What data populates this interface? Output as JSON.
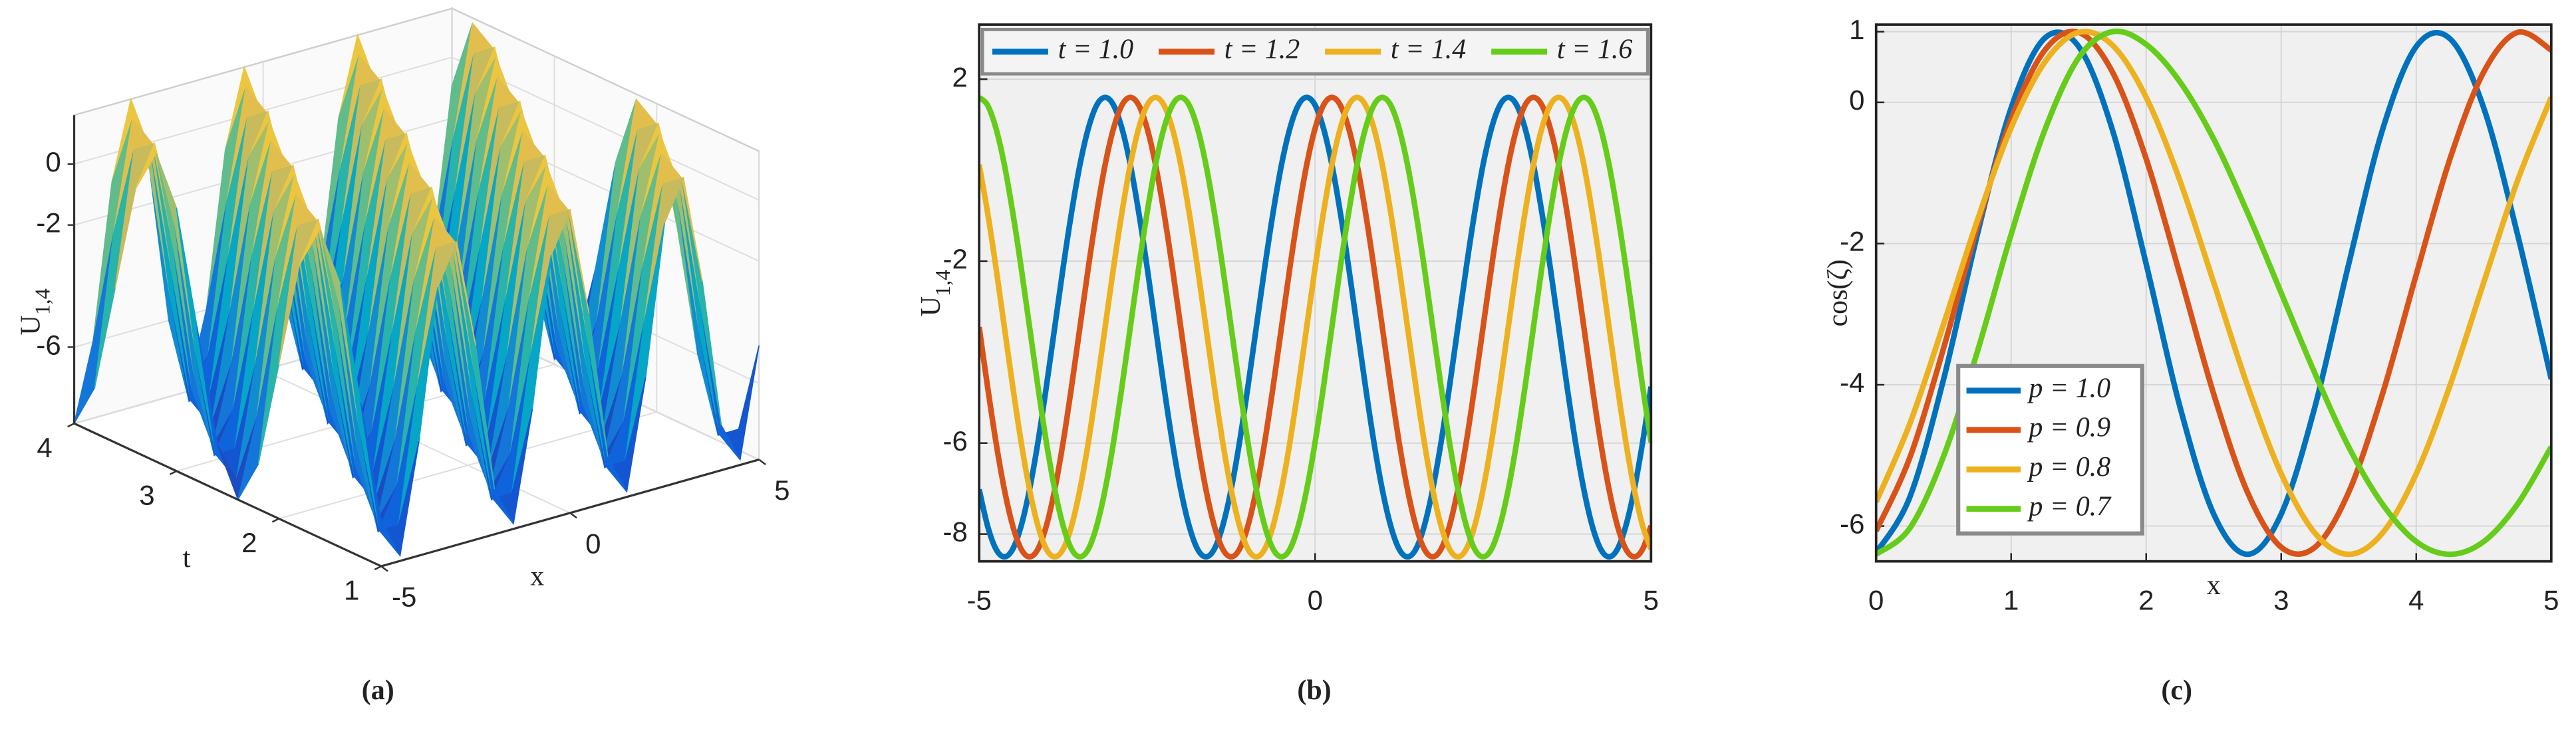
{
  "chart_data": [
    {
      "type": "surface",
      "caption": "(a)",
      "xlabel": "x",
      "tlabel": "t",
      "zlabel": "U",
      "zlabel_sub": "1,4",
      "x": [
        -5,
        -4.5,
        -4,
        -3.5,
        -3,
        -2.5,
        -2,
        -1.5,
        -1,
        -0.5,
        0,
        0.5,
        1,
        1.5,
        2,
        2.5,
        3,
        3.5,
        4,
        4.5,
        5
      ],
      "t": [
        1,
        1.2,
        1.4,
        1.6,
        1.8,
        2,
        2.2,
        2.4,
        2.6,
        2.8,
        3,
        3.2,
        3.4,
        3.6,
        3.8,
        4
      ],
      "z": [
        [
          -7.02,
          -8.33,
          -4.76,
          0.12,
          1.43,
          -2.14,
          -7.02,
          -8.33,
          -4.76,
          0.12,
          1.43,
          -2.14,
          -7.02,
          -8.33,
          -4.76,
          0.12,
          1.43,
          -2.14,
          -7.02,
          -8.33,
          -4.76
        ],
        [
          -3.45,
          -7.82,
          -7.82,
          -3.45,
          0.92,
          0.92,
          -3.45,
          -7.82,
          -7.82,
          -3.45,
          0.92,
          0.92,
          -3.45,
          -7.82,
          -7.82,
          -3.45,
          0.92,
          0.92,
          -3.45,
          -7.82,
          -7.82
        ],
        [
          0.12,
          -4.76,
          -8.33,
          -7.02,
          -2.14,
          1.43,
          0.12,
          -4.76,
          -8.33,
          -7.02,
          -2.14,
          1.43,
          0.12,
          -4.76,
          -8.33,
          -7.02,
          -2.14,
          1.43,
          0.12,
          -4.76,
          -8.33
        ],
        [
          1.6,
          -0.93,
          -5.98,
          -8.5,
          -5.98,
          -0.93,
          1.6,
          -0.93,
          -5.98,
          -8.5,
          -5.98,
          -0.93,
          1.6,
          -0.93,
          -5.98,
          -8.5,
          -5.98,
          -0.93,
          1.6,
          -0.93,
          -5.98
        ],
        [
          0.12,
          1.43,
          -2.14,
          -7.02,
          -8.33,
          -4.76,
          0.12,
          1.43,
          -2.14,
          -7.02,
          -8.33,
          -4.76,
          0.12,
          1.43,
          -2.14,
          -7.02,
          -8.33,
          -4.76,
          0.12,
          1.43,
          -2.14
        ],
        [
          -3.45,
          0.92,
          0.92,
          -3.45,
          -7.82,
          -7.82,
          -3.45,
          0.92,
          0.92,
          -3.45,
          -7.82,
          -7.82,
          -3.45,
          0.92,
          0.92,
          -3.45,
          -7.82,
          -7.82,
          -3.45,
          0.92,
          0.92
        ],
        [
          -7.02,
          -2.14,
          1.43,
          0.12,
          -4.76,
          -8.33,
          -7.02,
          -2.14,
          1.43,
          0.12,
          -4.76,
          -8.33,
          -7.02,
          -2.14,
          1.43,
          0.12,
          -4.76,
          -8.33,
          -7.02,
          -2.14,
          1.43
        ],
        [
          -8.5,
          -5.98,
          -0.93,
          1.6,
          -0.93,
          -5.98,
          -8.5,
          -5.98,
          -0.93,
          1.6,
          -0.93,
          -5.98,
          -8.5,
          -5.98,
          -0.93,
          1.6,
          -0.93,
          -5.98,
          -8.5,
          -5.98,
          -0.93
        ],
        [
          -7.02,
          -8.33,
          -4.76,
          0.12,
          1.43,
          -2.14,
          -7.02,
          -8.33,
          -4.76,
          0.12,
          1.43,
          -2.14,
          -7.02,
          -8.33,
          -4.76,
          0.12,
          1.43,
          -2.14,
          -7.02,
          -8.33,
          -4.76
        ],
        [
          -3.45,
          -7.82,
          -7.82,
          -3.45,
          0.92,
          0.92,
          -3.45,
          -7.82,
          -7.82,
          -3.45,
          0.92,
          0.92,
          -3.45,
          -7.82,
          -7.82,
          -3.45,
          0.92,
          0.92,
          -3.45,
          -7.82,
          -7.82
        ],
        [
          0.12,
          -4.76,
          -8.33,
          -7.02,
          -2.14,
          1.43,
          0.12,
          -4.76,
          -8.33,
          -7.02,
          -2.14,
          1.43,
          0.12,
          -4.76,
          -8.33,
          -7.02,
          -2.14,
          1.43,
          0.12,
          -4.76,
          -8.33
        ],
        [
          1.6,
          -0.93,
          -5.98,
          -8.5,
          -5.98,
          -0.93,
          1.6,
          -0.93,
          -5.98,
          -8.5,
          -5.98,
          -0.93,
          1.6,
          -0.93,
          -5.98,
          -8.5,
          -5.98,
          -0.93,
          1.6,
          -0.93,
          -5.98
        ],
        [
          0.12,
          1.43,
          -2.14,
          -7.02,
          -8.33,
          -4.76,
          0.12,
          1.43,
          -2.14,
          -7.02,
          -8.33,
          -4.76,
          0.12,
          1.43,
          -2.14,
          -7.02,
          -8.33,
          -4.76,
          0.12,
          1.43,
          -2.14
        ],
        [
          -3.45,
          0.92,
          0.92,
          -3.45,
          -7.82,
          -7.82,
          -3.45,
          0.92,
          0.92,
          -3.45,
          -7.82,
          -7.82,
          -3.45,
          0.92,
          0.92,
          -3.45,
          -7.82,
          -7.82,
          -3.45,
          0.92,
          0.92
        ],
        [
          -7.02,
          -2.14,
          1.43,
          0.12,
          -4.76,
          -8.33,
          -7.02,
          -2.14,
          1.43,
          0.12,
          -4.76,
          -8.33,
          -7.02,
          -2.14,
          1.43,
          0.12,
          -4.76,
          -8.33,
          -7.02,
          -2.14,
          1.43
        ],
        [
          -8.5,
          -5.98,
          -0.93,
          1.6,
          -0.93,
          -5.98,
          -8.5,
          -5.98,
          -0.93,
          1.6,
          -0.93,
          -5.98,
          -8.5,
          -5.98,
          -0.93,
          1.6,
          -0.93,
          -5.98,
          -8.5,
          -5.98,
          -0.93
        ]
      ],
      "xlim": [
        -5,
        5
      ],
      "tlim": [
        1,
        4
      ],
      "zlim": [
        -8.5,
        1.6
      ],
      "xticks": [
        -5,
        0,
        5
      ],
      "tticks": [
        1,
        2,
        3,
        4
      ],
      "zticks": [
        0,
        -2,
        -6
      ],
      "colormap": "parula",
      "grid": true
    },
    {
      "type": "line",
      "caption": "(b)",
      "ylabel": "U",
      "ylabel_sub": "1,4",
      "x": [
        -5,
        -4.875,
        -4.75,
        -4.625,
        -4.5,
        -4.375,
        -4.25,
        -4.125,
        -4,
        -3.875,
        -3.75,
        -3.625,
        -3.5,
        -3.375,
        -3.25,
        -3.125,
        -3,
        -2.875,
        -2.75,
        -2.625,
        -2.5,
        -2.375,
        -2.25,
        -2.125,
        -2,
        -1.875,
        -1.75,
        -1.625,
        -1.5,
        -1.375,
        -1.25,
        -1.125,
        -1,
        -0.875,
        -0.75,
        -0.625,
        -0.5,
        -0.375,
        -0.25,
        -0.125,
        0,
        0.125,
        0.25,
        0.375,
        0.5,
        0.625,
        0.75,
        0.875,
        1,
        1.125,
        1.25,
        1.375,
        1.5,
        1.625,
        1.75,
        1.875,
        2,
        2.125,
        2.25,
        2.375,
        2.5,
        2.625,
        2.75,
        2.875,
        3,
        3.125,
        3.25,
        3.375,
        3.5,
        3.625,
        3.75,
        3.875,
        4,
        4.125,
        4.25,
        4.375,
        4.5,
        4.625,
        4.75,
        4.875,
        5
      ],
      "series": [
        {
          "name": "t = 1.0",
          "color": "#0072bd",
          "values": [
            -7.02,
            -7.82,
            -8.33,
            -8.5,
            -8.33,
            -7.82,
            -7.02,
            -5.98,
            -4.76,
            -3.45,
            -2.14,
            -0.93,
            0.12,
            0.92,
            1.43,
            1.6,
            1.43,
            0.92,
            0.12,
            -0.93,
            -2.14,
            -3.45,
            -4.76,
            -5.98,
            -7.02,
            -7.82,
            -8.33,
            -8.5,
            -8.33,
            -7.82,
            -7.02,
            -5.98,
            -4.76,
            -3.45,
            -2.14,
            -0.93,
            0.12,
            0.92,
            1.43,
            1.6,
            1.43,
            0.92,
            0.12,
            -0.93,
            -2.14,
            -3.45,
            -4.76,
            -5.98,
            -7.02,
            -7.82,
            -8.33,
            -8.5,
            -8.33,
            -7.82,
            -7.02,
            -5.98,
            -4.76,
            -3.45,
            -2.14,
            -0.93,
            0.12,
            0.92,
            1.43,
            1.6,
            1.43,
            0.92,
            0.12,
            -0.93,
            -2.14,
            -3.45,
            -4.76,
            -5.98,
            -7.02,
            -7.82,
            -8.33,
            -8.5,
            -8.33,
            -7.82,
            -7.02,
            -5.98,
            -4.76
          ]
        },
        {
          "name": "t = 1.2",
          "color": "#d95319",
          "values": [
            -3.45,
            -4.76,
            -5.98,
            -7.02,
            -7.82,
            -8.33,
            -8.5,
            -8.33,
            -7.82,
            -7.02,
            -5.98,
            -4.76,
            -3.45,
            -2.14,
            -0.93,
            0.12,
            0.92,
            1.43,
            1.6,
            1.43,
            0.92,
            0.12,
            -0.93,
            -2.14,
            -3.45,
            -4.76,
            -5.98,
            -7.02,
            -7.82,
            -8.33,
            -8.5,
            -8.33,
            -7.82,
            -7.02,
            -5.98,
            -4.76,
            -3.45,
            -2.14,
            -0.93,
            0.12,
            0.92,
            1.43,
            1.6,
            1.43,
            0.92,
            0.12,
            -0.93,
            -2.14,
            -3.45,
            -4.76,
            -5.98,
            -7.02,
            -7.82,
            -8.33,
            -8.5,
            -8.33,
            -7.82,
            -7.02,
            -5.98,
            -4.76,
            -3.45,
            -2.14,
            -0.93,
            0.12,
            0.92,
            1.43,
            1.6,
            1.43,
            0.92,
            0.12,
            -0.93,
            -2.14,
            -3.45,
            -4.76,
            -5.98,
            -7.02,
            -7.82,
            -8.33,
            -8.5,
            -8.33,
            -7.82
          ]
        },
        {
          "name": "t = 1.4",
          "color": "#edb120",
          "values": [
            0.12,
            -0.93,
            -2.14,
            -3.45,
            -4.76,
            -5.98,
            -7.02,
            -7.82,
            -8.33,
            -8.5,
            -8.33,
            -7.82,
            -7.02,
            -5.98,
            -4.76,
            -3.45,
            -2.14,
            -0.93,
            0.12,
            0.92,
            1.43,
            1.6,
            1.43,
            0.92,
            0.12,
            -0.93,
            -2.14,
            -3.45,
            -4.76,
            -5.98,
            -7.02,
            -7.82,
            -8.33,
            -8.5,
            -8.33,
            -7.82,
            -7.02,
            -5.98,
            -4.76,
            -3.45,
            -2.14,
            -0.93,
            0.12,
            0.92,
            1.43,
            1.6,
            1.43,
            0.92,
            0.12,
            -0.93,
            -2.14,
            -3.45,
            -4.76,
            -5.98,
            -7.02,
            -7.82,
            -8.33,
            -8.5,
            -8.33,
            -7.82,
            -7.02,
            -5.98,
            -4.76,
            -3.45,
            -2.14,
            -0.93,
            0.12,
            0.92,
            1.43,
            1.6,
            1.43,
            0.92,
            0.12,
            -0.93,
            -2.14,
            -3.45,
            -4.76,
            -5.98,
            -7.02,
            -7.82,
            -8.33
          ]
        },
        {
          "name": "t = 1.6",
          "color": "#66cc1a",
          "values": [
            1.6,
            1.43,
            0.92,
            0.12,
            -0.93,
            -2.14,
            -3.45,
            -4.76,
            -5.98,
            -7.02,
            -7.82,
            -8.33,
            -8.5,
            -8.33,
            -7.82,
            -7.02,
            -5.98,
            -4.76,
            -3.45,
            -2.14,
            -0.93,
            0.12,
            0.92,
            1.43,
            1.6,
            1.43,
            0.92,
            0.12,
            -0.93,
            -2.14,
            -3.45,
            -4.76,
            -5.98,
            -7.02,
            -7.82,
            -8.33,
            -8.5,
            -8.33,
            -7.82,
            -7.02,
            -5.98,
            -4.76,
            -3.45,
            -2.14,
            -0.93,
            0.12,
            0.92,
            1.43,
            1.6,
            1.43,
            0.92,
            0.12,
            -0.93,
            -2.14,
            -3.45,
            -4.76,
            -5.98,
            -7.02,
            -7.82,
            -8.33,
            -8.5,
            -8.33,
            -7.82,
            -7.02,
            -5.98,
            -4.76,
            -3.45,
            -2.14,
            -0.93,
            0.12,
            0.92,
            1.43,
            1.6,
            1.43,
            0.92,
            0.12,
            -0.93,
            -2.14,
            -3.45,
            -4.76,
            -5.98
          ]
        }
      ],
      "xlim": [
        -5,
        5
      ],
      "ylim": [
        -8.6,
        3.2
      ],
      "xticks": [
        -5,
        0,
        5
      ],
      "yticks": [
        2,
        -2,
        -6,
        -8
      ],
      "grid": true,
      "legend": "top"
    },
    {
      "type": "line",
      "caption": "(c)",
      "xlabel": "x",
      "ylabel": "cos(ζ)",
      "x": [
        0,
        0.25,
        0.5,
        0.75,
        1,
        1.25,
        1.5,
        1.75,
        2,
        2.25,
        2.5,
        2.75,
        3,
        3.25,
        3.5,
        3.75,
        4,
        4.25,
        4.5,
        4.75,
        5
      ],
      "series": [
        {
          "name": "p = 1.0",
          "color": "#0072bd",
          "values": [
            -6.38,
            -5.59,
            -3.92,
            -1.87,
            -0.08,
            0.91,
            0.79,
            -0.39,
            -2.29,
            -4.31,
            -5.83,
            -6.4,
            -5.83,
            -4.31,
            -2.29,
            -0.39,
            0.79,
            0.9,
            -0.08,
            -1.87,
            -3.92
          ]
        },
        {
          "name": "p = 0.9",
          "color": "#d95319",
          "values": [
            -6.07,
            -5.03,
            -3.48,
            -1.76,
            -0.24,
            0.74,
            0.99,
            0.43,
            -0.8,
            -2.44,
            -4.13,
            -5.52,
            -6.3,
            -6.3,
            -5.52,
            -4.13,
            -2.44,
            -0.8,
            0.43,
            0.99,
            0.74
          ]
        },
        {
          "name": "p = 0.8",
          "color": "#edb120",
          "values": [
            -5.66,
            -4.55,
            -3.14,
            -1.67,
            -0.36,
            0.57,
            0.99,
            0.81,
            0.07,
            -1.11,
            -2.55,
            -4.01,
            -5.26,
            -6.1,
            -6.4,
            -6.1,
            -5.26,
            -4.01,
            -2.55,
            -1.11,
            0.07
          ]
        },
        {
          "name": "p = 0.7",
          "color": "#66cc1a",
          "values": [
            -6.4,
            -6.03,
            -5.01,
            -3.53,
            -1.87,
            -0.39,
            0.63,
            1,
            0.82,
            0.29,
            -0.52,
            -1.56,
            -2.7,
            -3.84,
            -4.88,
            -5.69,
            -6.22,
            -6.4,
            -6.22,
            -5.69,
            -4.88
          ]
        }
      ],
      "xlim": [
        0,
        5
      ],
      "ylim": [
        -6.5,
        1.1
      ],
      "xticks": [
        0,
        1,
        2,
        3,
        4,
        5
      ],
      "yticks": [
        1,
        0,
        -2,
        -4,
        -6
      ],
      "grid": true,
      "legend": "lower left"
    }
  ]
}
